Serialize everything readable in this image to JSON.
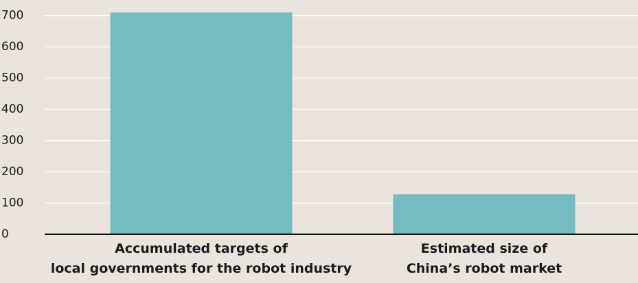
{
  "chart_data": {
    "type": "bar",
    "categories": [
      "Accumulated targets of\nlocal governments for the robot industry",
      "Estimated size of\nChina’s robot market"
    ],
    "values": [
      710,
      128
    ],
    "color": "#72bcc2",
    "ylim": [
      0,
      750
    ],
    "yticks": [
      0,
      100,
      200,
      300,
      400,
      500,
      600,
      700
    ],
    "grid": true
  }
}
